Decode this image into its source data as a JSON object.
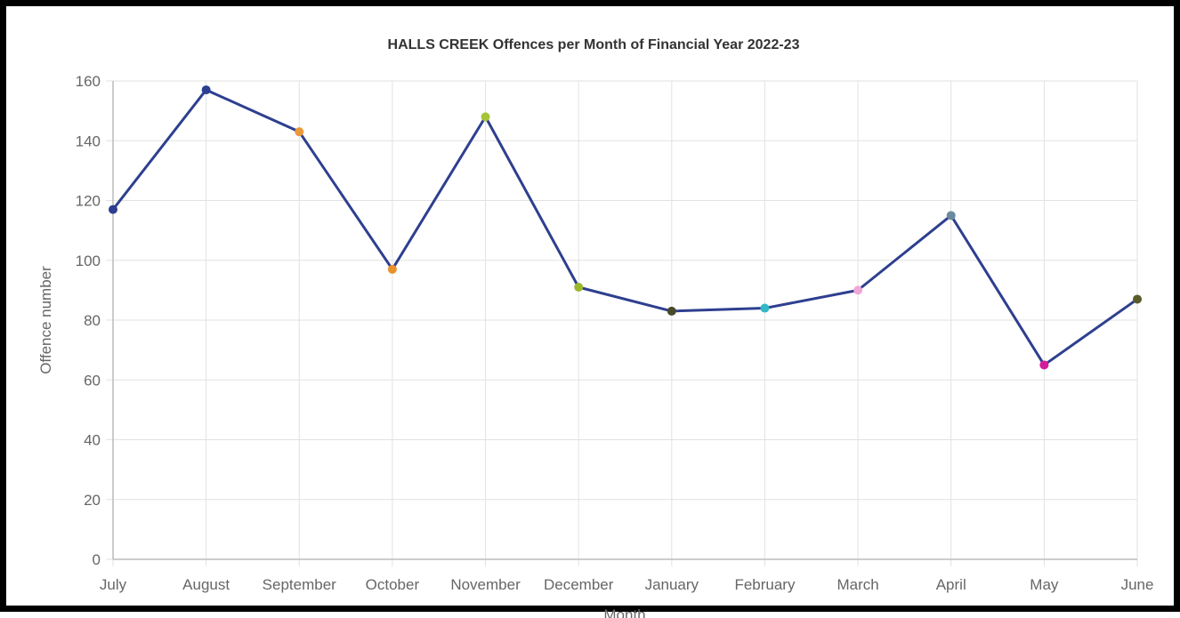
{
  "chart_data": {
    "type": "line",
    "title": "HALLS CREEK Offences per Month of Financial Year 2022-23",
    "xlabel": "Month",
    "ylabel": "Offence number",
    "categories": [
      "July",
      "August",
      "September",
      "October",
      "November",
      "December",
      "January",
      "February",
      "March",
      "April",
      "May",
      "June"
    ],
    "series": [
      {
        "values": [
          117,
          157,
          143,
          97,
          148,
          91,
          83,
          84,
          90,
          115,
          65,
          87
        ]
      }
    ],
    "ylim": [
      0,
      160
    ],
    "yticks": [
      "0",
      "20",
      "40",
      "60",
      "80",
      "100",
      "120",
      "140",
      "160"
    ],
    "grid": true,
    "line_color": "#2e3f8f",
    "point_colors": [
      "#2c3e91",
      "#2c3e91",
      "#e89a3c",
      "#e8912d",
      "#a6c43a",
      "#9ab82a",
      "#4a4a2a",
      "#33b8c8",
      "#f0a6d8",
      "#6a8aa0",
      "#d41c9c",
      "#5a5a2a"
    ]
  }
}
